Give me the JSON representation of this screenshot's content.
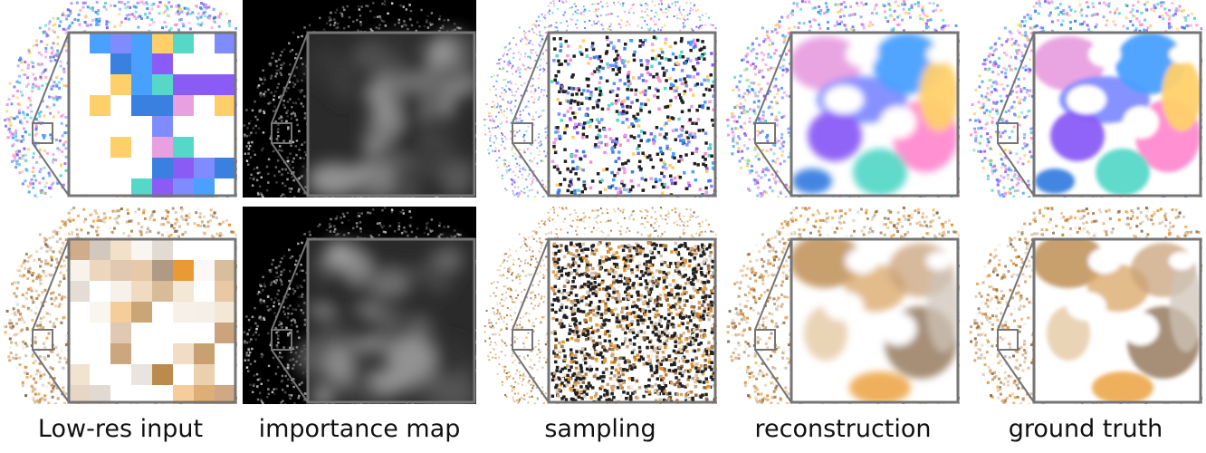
{
  "figure": {
    "columns": [
      {
        "id": "lowres",
        "caption": "Low-res input"
      },
      {
        "id": "importance",
        "caption": "importance map"
      },
      {
        "id": "sampling",
        "caption": "sampling"
      },
      {
        "id": "reconstruction",
        "caption": "reconstruction"
      },
      {
        "id": "groundtruth",
        "caption": "ground truth"
      }
    ],
    "rows": [
      {
        "id": "normals",
        "palette": [
          "#e8a0e0",
          "#7f8cff",
          "#4aa0ff",
          "#8a5cf5",
          "#ff8ad0",
          "#56d8c8",
          "#ffd06a",
          "#3a80e0"
        ]
      },
      {
        "id": "shaded",
        "palette": [
          "#b5803e",
          "#d9a565",
          "#caa27a",
          "#e3c59e",
          "#8a6a4a",
          "#e9952a",
          "#cfc4b8",
          "#f4eee4"
        ]
      }
    ],
    "colors": {
      "inset_border": "#757575",
      "importance_bg": "#000000",
      "sparse_dots": "#202020"
    }
  }
}
